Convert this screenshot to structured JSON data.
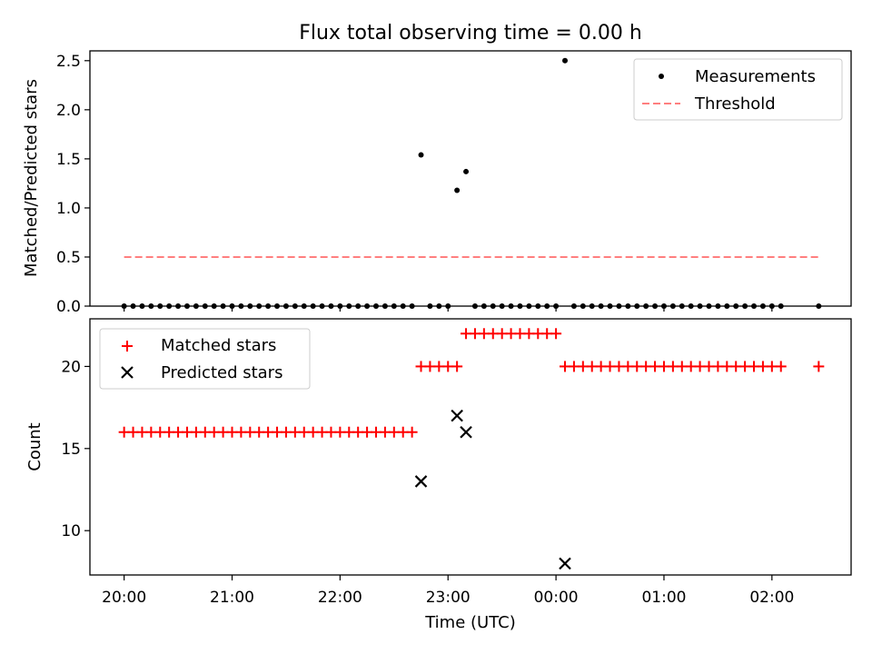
{
  "title": "Flux total observing time = 0.00 h",
  "x_axis": {
    "label": "Time (UTC)",
    "ticks": [
      "20:00",
      "21:00",
      "22:00",
      "23:00",
      "00:00",
      "01:00",
      "02:00"
    ],
    "tick_minutes": [
      0,
      60,
      120,
      180,
      240,
      300,
      360
    ],
    "range_minutes": [
      -19,
      404
    ]
  },
  "colors": {
    "matched": "#ff0000",
    "predicted": "#000000",
    "threshold": "#ff7f7f",
    "measurements": "#000000"
  },
  "chart_data": [
    {
      "type": "scatter",
      "ylabel": "Matched/Predicted stars",
      "ylim": [
        0,
        2.6
      ],
      "yticks": [
        "0.0",
        "0.5",
        "1.0",
        "1.5",
        "2.0",
        "2.5"
      ],
      "ytick_values": [
        0,
        0.5,
        1.0,
        1.5,
        2.0,
        2.5
      ],
      "legend": {
        "placement": "upper right",
        "entries": [
          "Measurements",
          "Threshold"
        ]
      },
      "series": [
        {
          "name": "Measurements",
          "marker": "dot",
          "points": [
            [
              0,
              0
            ],
            [
              5,
              0
            ],
            [
              10,
              0
            ],
            [
              15,
              0
            ],
            [
              20,
              0
            ],
            [
              25,
              0
            ],
            [
              30,
              0
            ],
            [
              35,
              0
            ],
            [
              40,
              0
            ],
            [
              45,
              0
            ],
            [
              50,
              0
            ],
            [
              55,
              0
            ],
            [
              60,
              0
            ],
            [
              65,
              0
            ],
            [
              70,
              0
            ],
            [
              75,
              0
            ],
            [
              80,
              0
            ],
            [
              85,
              0
            ],
            [
              90,
              0
            ],
            [
              95,
              0
            ],
            [
              100,
              0
            ],
            [
              105,
              0
            ],
            [
              110,
              0
            ],
            [
              115,
              0
            ],
            [
              120,
              0
            ],
            [
              125,
              0
            ],
            [
              130,
              0
            ],
            [
              135,
              0
            ],
            [
              140,
              0
            ],
            [
              145,
              0
            ],
            [
              150,
              0
            ],
            [
              155,
              0
            ],
            [
              160,
              0
            ],
            [
              165,
              1.54
            ],
            [
              170,
              0
            ],
            [
              175,
              0
            ],
            [
              180,
              0
            ],
            [
              185,
              1.18
            ],
            [
              190,
              1.37
            ],
            [
              195,
              0
            ],
            [
              200,
              0
            ],
            [
              205,
              0
            ],
            [
              210,
              0
            ],
            [
              215,
              0
            ],
            [
              220,
              0
            ],
            [
              225,
              0
            ],
            [
              230,
              0
            ],
            [
              235,
              0
            ],
            [
              240,
              0
            ],
            [
              245,
              2.5
            ],
            [
              250,
              0
            ],
            [
              255,
              0
            ],
            [
              260,
              0
            ],
            [
              265,
              0
            ],
            [
              270,
              0
            ],
            [
              275,
              0
            ],
            [
              280,
              0
            ],
            [
              285,
              0
            ],
            [
              290,
              0
            ],
            [
              295,
              0
            ],
            [
              300,
              0
            ],
            [
              305,
              0
            ],
            [
              310,
              0
            ],
            [
              315,
              0
            ],
            [
              320,
              0
            ],
            [
              325,
              0
            ],
            [
              330,
              0
            ],
            [
              335,
              0
            ],
            [
              340,
              0
            ],
            [
              345,
              0
            ],
            [
              350,
              0
            ],
            [
              355,
              0
            ],
            [
              360,
              0
            ],
            [
              365,
              0
            ],
            [
              386,
              0
            ]
          ]
        },
        {
          "name": "Threshold",
          "marker": "dashed-line",
          "points": [
            [
              0,
              0.5
            ],
            [
              386,
              0.5
            ]
          ]
        }
      ]
    },
    {
      "type": "scatter",
      "ylabel": "Count",
      "ylim": [
        7.3,
        22.9
      ],
      "yticks": [
        "10",
        "15",
        "20"
      ],
      "ytick_values": [
        10,
        15,
        20
      ],
      "legend": {
        "placement": "upper left",
        "entries": [
          "Matched stars",
          "Predicted stars"
        ]
      },
      "series": [
        {
          "name": "Matched stars",
          "marker": "plus",
          "points": [
            [
              0,
              16
            ],
            [
              5,
              16
            ],
            [
              10,
              16
            ],
            [
              15,
              16
            ],
            [
              20,
              16
            ],
            [
              25,
              16
            ],
            [
              30,
              16
            ],
            [
              35,
              16
            ],
            [
              40,
              16
            ],
            [
              45,
              16
            ],
            [
              50,
              16
            ],
            [
              55,
              16
            ],
            [
              60,
              16
            ],
            [
              65,
              16
            ],
            [
              70,
              16
            ],
            [
              75,
              16
            ],
            [
              80,
              16
            ],
            [
              85,
              16
            ],
            [
              90,
              16
            ],
            [
              95,
              16
            ],
            [
              100,
              16
            ],
            [
              105,
              16
            ],
            [
              110,
              16
            ],
            [
              115,
              16
            ],
            [
              120,
              16
            ],
            [
              125,
              16
            ],
            [
              130,
              16
            ],
            [
              135,
              16
            ],
            [
              140,
              16
            ],
            [
              145,
              16
            ],
            [
              150,
              16
            ],
            [
              155,
              16
            ],
            [
              160,
              16
            ],
            [
              165,
              20
            ],
            [
              170,
              20
            ],
            [
              175,
              20
            ],
            [
              180,
              20
            ],
            [
              185,
              20
            ],
            [
              190,
              22
            ],
            [
              195,
              22
            ],
            [
              200,
              22
            ],
            [
              205,
              22
            ],
            [
              210,
              22
            ],
            [
              215,
              22
            ],
            [
              220,
              22
            ],
            [
              225,
              22
            ],
            [
              230,
              22
            ],
            [
              235,
              22
            ],
            [
              240,
              22
            ],
            [
              245,
              20
            ],
            [
              250,
              20
            ],
            [
              255,
              20
            ],
            [
              260,
              20
            ],
            [
              265,
              20
            ],
            [
              270,
              20
            ],
            [
              275,
              20
            ],
            [
              280,
              20
            ],
            [
              285,
              20
            ],
            [
              290,
              20
            ],
            [
              295,
              20
            ],
            [
              300,
              20
            ],
            [
              305,
              20
            ],
            [
              310,
              20
            ],
            [
              315,
              20
            ],
            [
              320,
              20
            ],
            [
              325,
              20
            ],
            [
              330,
              20
            ],
            [
              335,
              20
            ],
            [
              340,
              20
            ],
            [
              345,
              20
            ],
            [
              350,
              20
            ],
            [
              355,
              20
            ],
            [
              360,
              20
            ],
            [
              365,
              20
            ],
            [
              386,
              20
            ]
          ]
        },
        {
          "name": "Predicted stars",
          "marker": "x",
          "points": [
            [
              165,
              13
            ],
            [
              185,
              17
            ],
            [
              190,
              16
            ],
            [
              245,
              8
            ]
          ]
        }
      ]
    }
  ]
}
